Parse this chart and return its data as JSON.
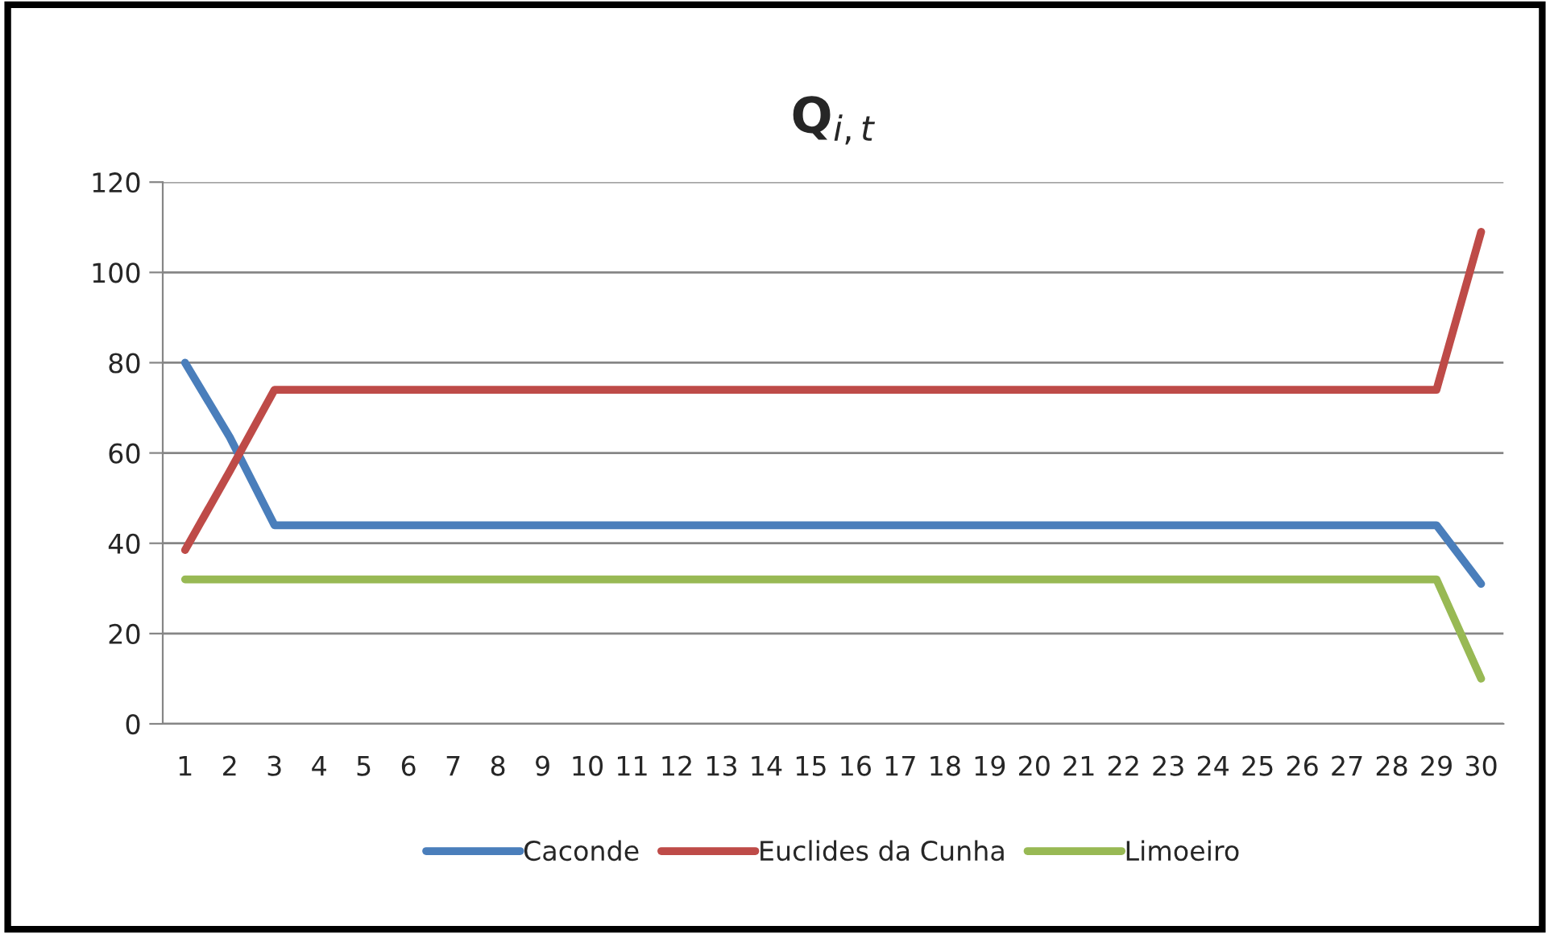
{
  "chart_data": {
    "type": "line",
    "title": "Q$_{i,t}$",
    "categories": [
      "1",
      "2",
      "3",
      "4",
      "5",
      "6",
      "7",
      "8",
      "9",
      "10",
      "11",
      "12",
      "13",
      "14",
      "15",
      "16",
      "17",
      "18",
      "19",
      "20",
      "21",
      "22",
      "23",
      "24",
      "25",
      "26",
      "27",
      "28",
      "29",
      "30"
    ],
    "series": [
      {
        "name": "Caconde",
        "color": "#4a7ebb",
        "values": [
          80,
          63.5,
          44,
          44,
          44,
          44,
          44,
          44,
          44,
          44,
          44,
          44,
          44,
          44,
          44,
          44,
          44,
          44,
          44,
          44,
          44,
          44,
          44,
          44,
          44,
          44,
          44,
          44,
          44,
          31
        ]
      },
      {
        "name": "Euclides da Cunha",
        "color": "#be4b48",
        "values": [
          38.5,
          56,
          74,
          74,
          74,
          74,
          74,
          74,
          74,
          74,
          74,
          74,
          74,
          74,
          74,
          74,
          74,
          74,
          74,
          74,
          74,
          74,
          74,
          74,
          74,
          74,
          74,
          74,
          74,
          109
        ]
      },
      {
        "name": "Limoeiro",
        "color": "#98b954",
        "values": [
          32,
          32,
          32,
          32,
          32,
          32,
          32,
          32,
          32,
          32,
          32,
          32,
          32,
          32,
          32,
          32,
          32,
          32,
          32,
          32,
          32,
          32,
          32,
          32,
          32,
          32,
          32,
          32,
          32,
          10
        ]
      }
    ],
    "ylim": [
      0,
      120
    ],
    "yticks": [
      0,
      20,
      40,
      60,
      80,
      100,
      120
    ],
    "grid": "y",
    "legend": "bottom",
    "marker": "none",
    "line_style": "solid"
  }
}
